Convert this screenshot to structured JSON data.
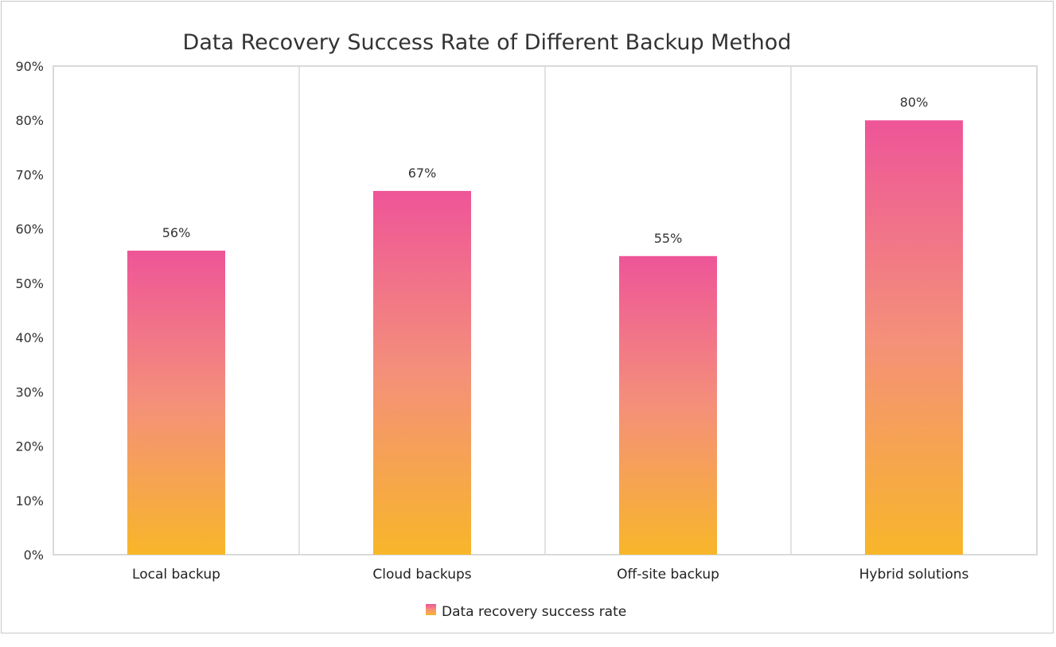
{
  "chart_data": {
    "type": "bar",
    "title": "Data Recovery Success Rate of Different Backup Method",
    "categories": [
      "Local backup",
      "Cloud backups",
      "Off-site backup",
      "Hybrid solutions"
    ],
    "series": [
      {
        "name": "Data recovery success rate",
        "values": [
          56,
          67,
          55,
          80
        ]
      }
    ],
    "data_labels": [
      "56%",
      "67%",
      "55%",
      "80%"
    ],
    "ylim": [
      0,
      90
    ],
    "yticks": [
      "0%",
      "10%",
      "20%",
      "30%",
      "40%",
      "50%",
      "60%",
      "70%",
      "80%",
      "90%"
    ],
    "xlabel": "",
    "ylabel": "",
    "legend": "bottom",
    "grid": "vertical category separators",
    "colors": {
      "gradient_top": "#ee5598",
      "gradient_bottom": "#f8b62a"
    }
  }
}
